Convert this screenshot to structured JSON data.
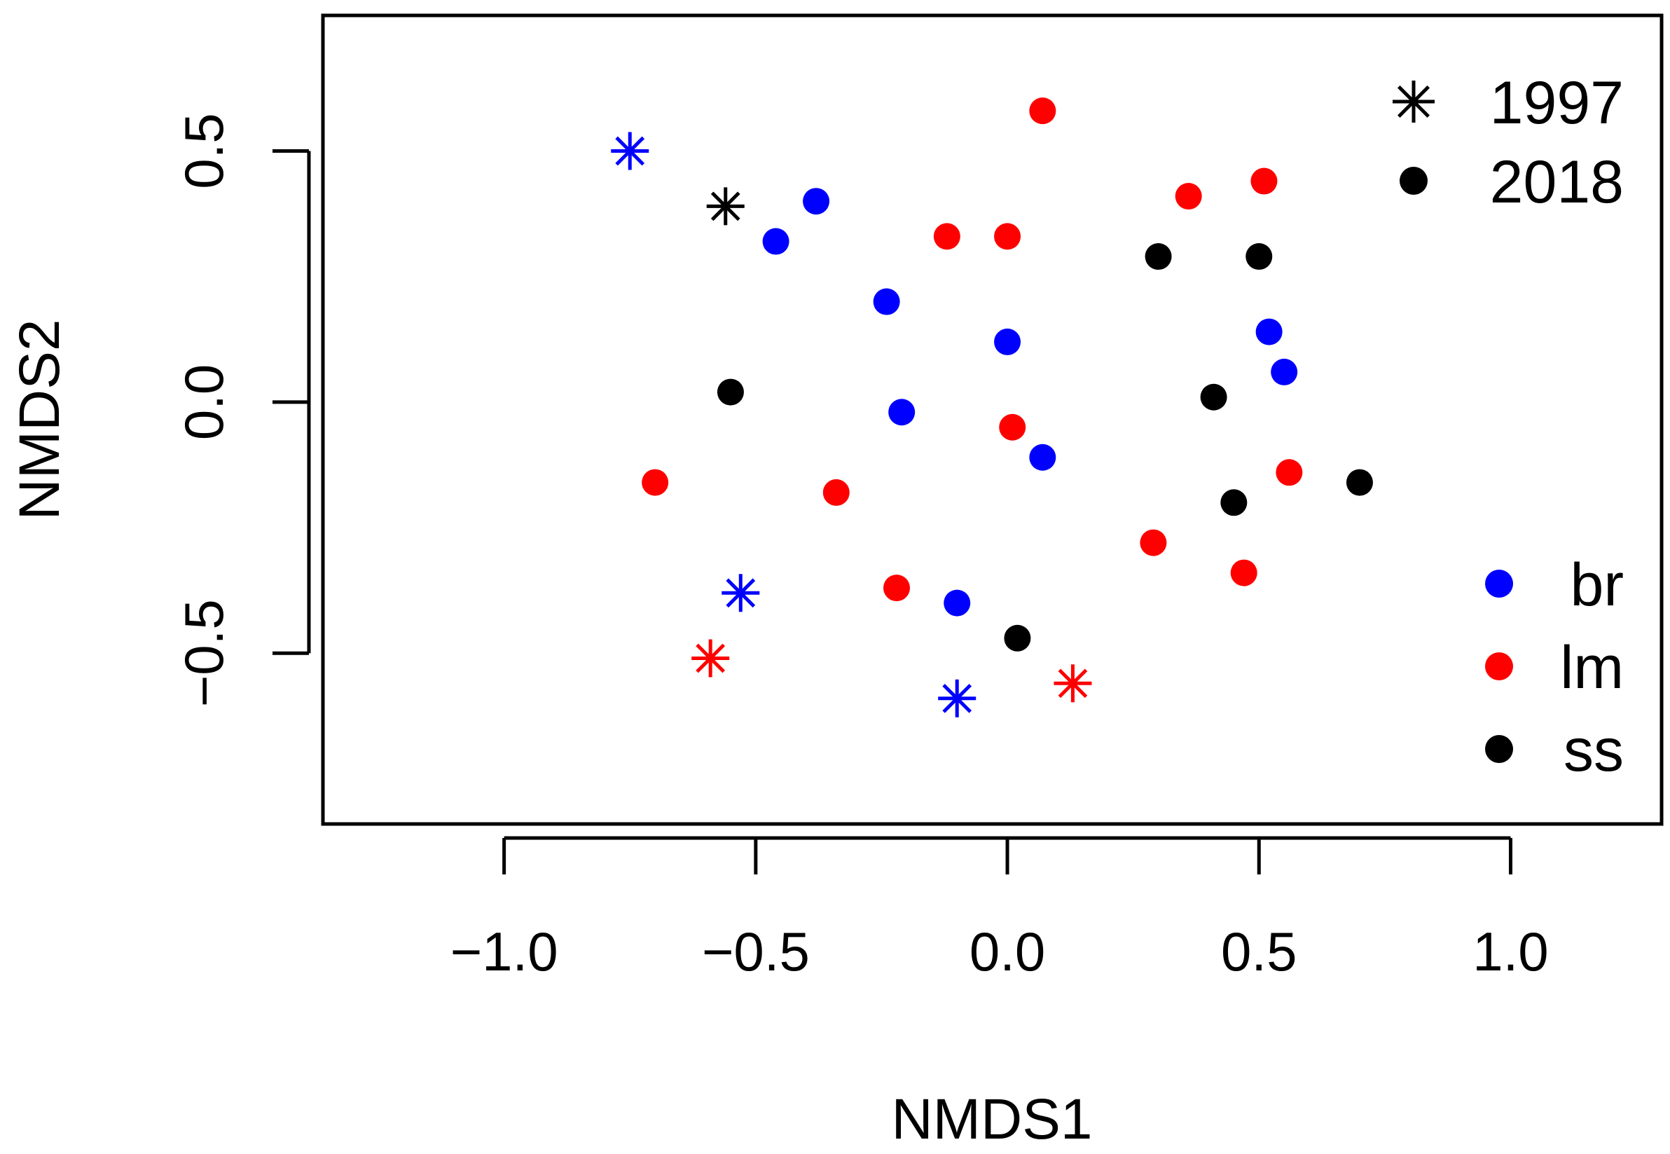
{
  "chart_data": {
    "type": "scatter",
    "title": "",
    "xlabel": "NMDS1",
    "ylabel": "NMDS2",
    "xlim": [
      -1.36,
      1.3
    ],
    "ylim": [
      -0.84,
      0.77
    ],
    "xticks": [
      -1.0,
      -0.5,
      0.0,
      0.5,
      1.0
    ],
    "xtick_labels": [
      "−1.0",
      "−0.5",
      "0.0",
      "0.5",
      "1.0"
    ],
    "yticks": [
      -0.5,
      0.0,
      0.5
    ],
    "ytick_labels": [
      "−0.5",
      "0.0",
      "0.5"
    ],
    "grid": false,
    "colors": {
      "br": "#0000ff",
      "lm": "#ff0000",
      "ss": "#000000"
    },
    "legend_year": {
      "placement": "top-right",
      "entries": [
        {
          "label": "1997",
          "marker": "asterisk"
        },
        {
          "label": "2018",
          "marker": "circle"
        }
      ]
    },
    "legend_group": {
      "placement": "bottom-right",
      "entries": [
        {
          "label": "br",
          "color": "#0000ff"
        },
        {
          "label": "lm",
          "color": "#ff0000"
        },
        {
          "label": "ss",
          "color": "#000000"
        }
      ]
    },
    "points": [
      {
        "x": -0.75,
        "y": 0.5,
        "group": "br",
        "year": "1997"
      },
      {
        "x": -0.56,
        "y": 0.39,
        "group": "ss",
        "year": "1997"
      },
      {
        "x": -0.53,
        "y": -0.38,
        "group": "br",
        "year": "1997"
      },
      {
        "x": -0.59,
        "y": -0.51,
        "group": "lm",
        "year": "1997"
      },
      {
        "x": -0.1,
        "y": -0.59,
        "group": "br",
        "year": "1997"
      },
      {
        "x": 0.13,
        "y": -0.56,
        "group": "lm",
        "year": "1997"
      },
      {
        "x": 0.07,
        "y": 0.58,
        "group": "lm",
        "year": "2018"
      },
      {
        "x": 0.51,
        "y": 0.44,
        "group": "lm",
        "year": "2018"
      },
      {
        "x": 0.36,
        "y": 0.41,
        "group": "lm",
        "year": "2018"
      },
      {
        "x": -0.12,
        "y": 0.33,
        "group": "lm",
        "year": "2018"
      },
      {
        "x": 0.0,
        "y": 0.33,
        "group": "lm",
        "year": "2018"
      },
      {
        "x": -0.38,
        "y": 0.4,
        "group": "br",
        "year": "2018"
      },
      {
        "x": -0.46,
        "y": 0.32,
        "group": "br",
        "year": "2018"
      },
      {
        "x": -0.24,
        "y": 0.2,
        "group": "br",
        "year": "2018"
      },
      {
        "x": 0.3,
        "y": 0.29,
        "group": "ss",
        "year": "2018"
      },
      {
        "x": 0.5,
        "y": 0.29,
        "group": "ss",
        "year": "2018"
      },
      {
        "x": 0.0,
        "y": 0.12,
        "group": "br",
        "year": "2018"
      },
      {
        "x": 0.52,
        "y": 0.14,
        "group": "br",
        "year": "2018"
      },
      {
        "x": 0.55,
        "y": 0.06,
        "group": "br",
        "year": "2018"
      },
      {
        "x": -0.55,
        "y": 0.02,
        "group": "ss",
        "year": "2018"
      },
      {
        "x": 0.41,
        "y": 0.01,
        "group": "ss",
        "year": "2018"
      },
      {
        "x": -0.21,
        "y": -0.02,
        "group": "br",
        "year": "2018"
      },
      {
        "x": 0.01,
        "y": -0.05,
        "group": "lm",
        "year": "2018"
      },
      {
        "x": 0.07,
        "y": -0.11,
        "group": "br",
        "year": "2018"
      },
      {
        "x": 0.56,
        "y": -0.14,
        "group": "lm",
        "year": "2018"
      },
      {
        "x": -0.7,
        "y": -0.16,
        "group": "lm",
        "year": "2018"
      },
      {
        "x": -0.34,
        "y": -0.18,
        "group": "lm",
        "year": "2018"
      },
      {
        "x": 0.45,
        "y": -0.2,
        "group": "ss",
        "year": "2018"
      },
      {
        "x": 0.7,
        "y": -0.16,
        "group": "ss",
        "year": "2018"
      },
      {
        "x": 0.29,
        "y": -0.28,
        "group": "lm",
        "year": "2018"
      },
      {
        "x": 0.47,
        "y": -0.34,
        "group": "lm",
        "year": "2018"
      },
      {
        "x": -0.22,
        "y": -0.37,
        "group": "lm",
        "year": "2018"
      },
      {
        "x": -0.1,
        "y": -0.4,
        "group": "br",
        "year": "2018"
      },
      {
        "x": 0.02,
        "y": -0.47,
        "group": "ss",
        "year": "2018"
      }
    ]
  }
}
